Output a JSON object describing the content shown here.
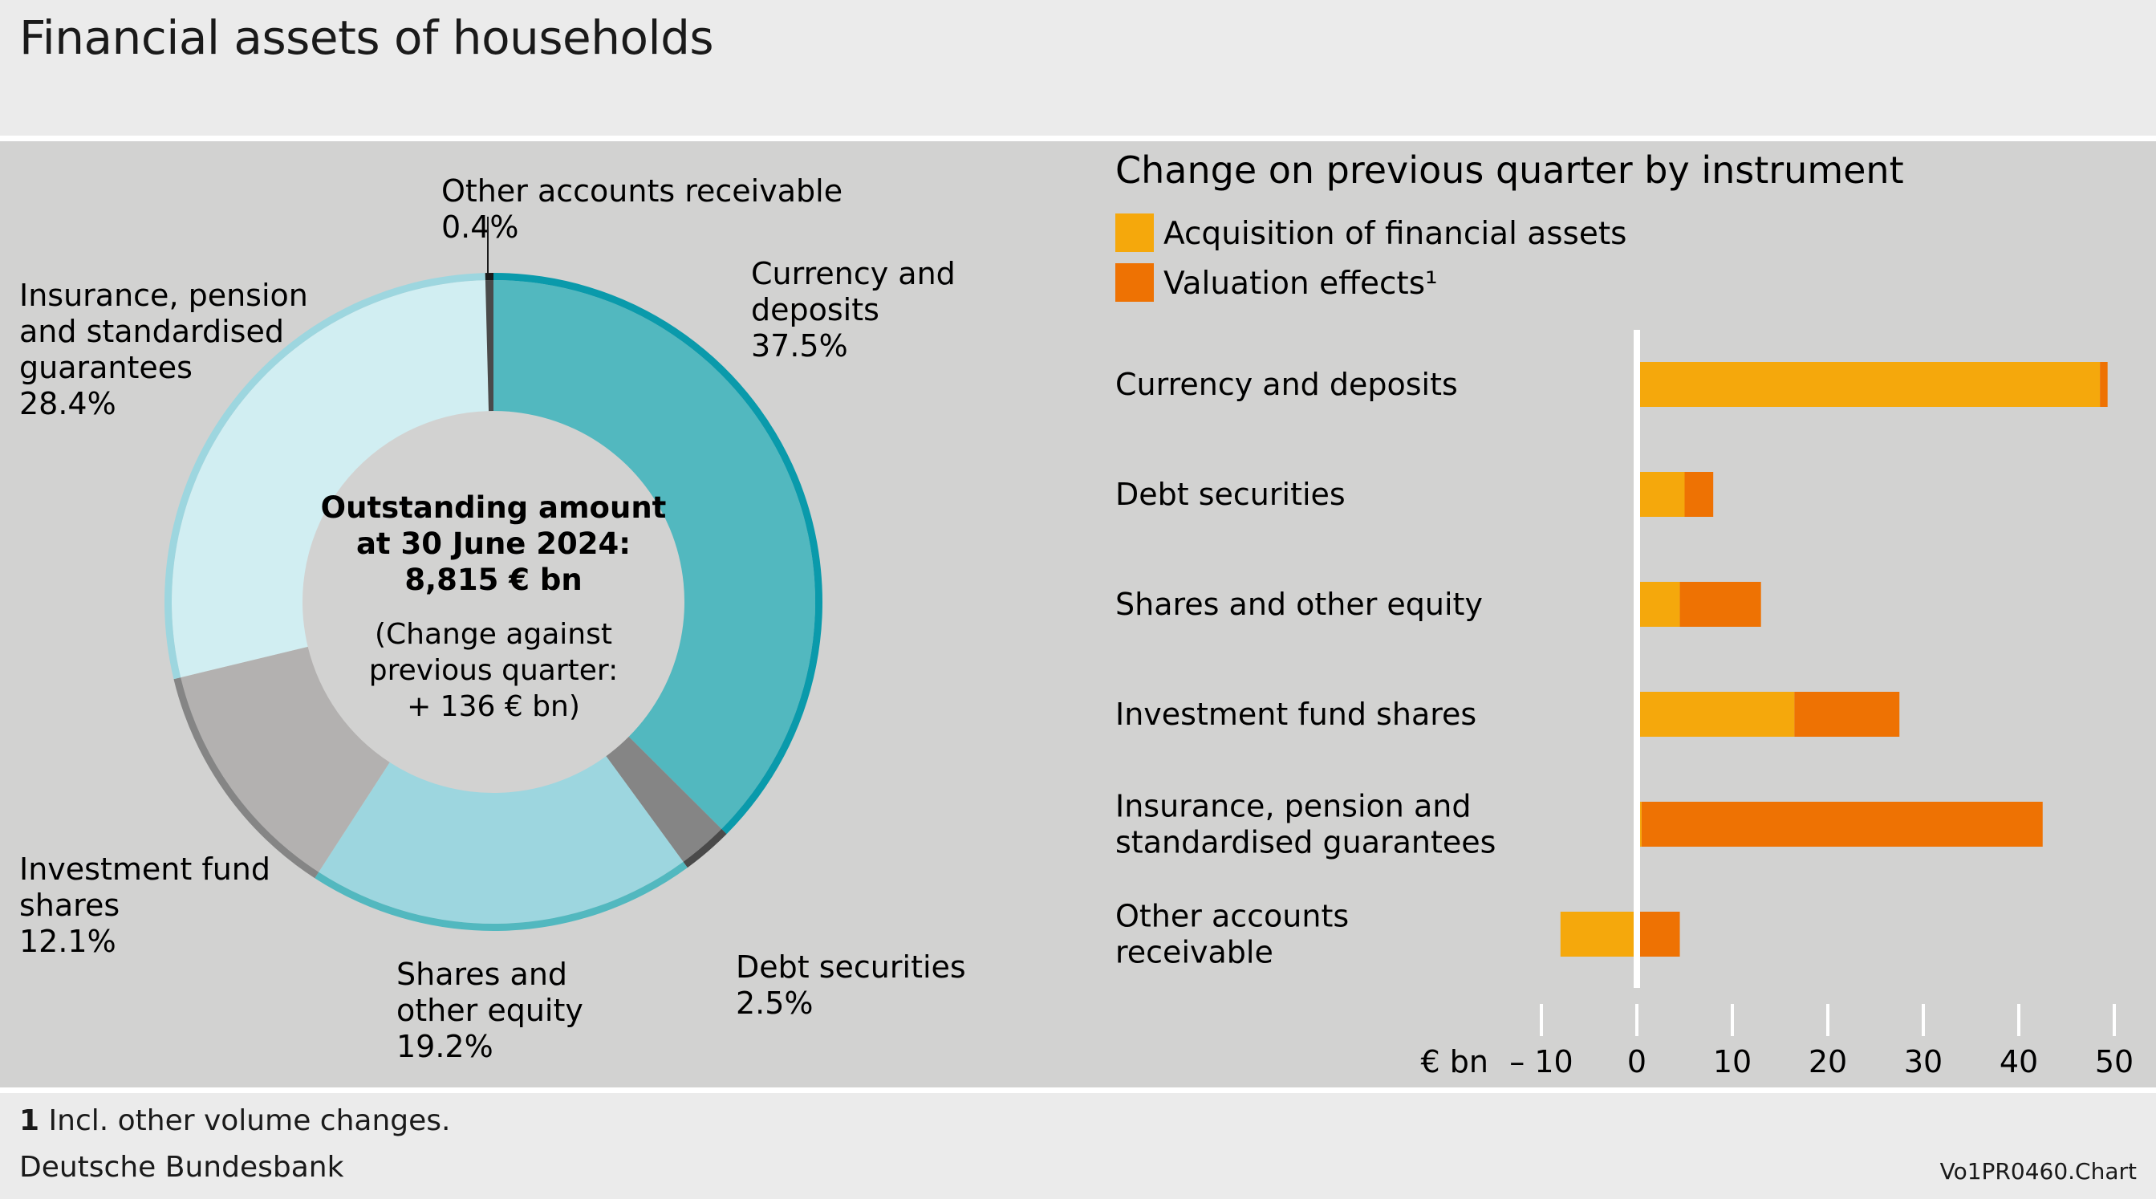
{
  "title": "Financial assets of households",
  "colors": {
    "panel_bg": "#d2d2d1",
    "acquisition": "#f5a80c",
    "valuation": "#ee7203",
    "donut_currency": "#52b8bf",
    "donut_currency_rim": "#0a9aab",
    "donut_debt": "#858585",
    "donut_debt_rim": "#4a4a4a",
    "donut_shares": "#9dd6df",
    "donut_shares_rim": "#52b8bf",
    "donut_fund": "#b3b1b0",
    "donut_fund_rim": "#858585",
    "donut_insurance": "#d1eef2",
    "donut_insurance_rim": "#9dd6df",
    "donut_other": "#4a4a4a",
    "donut_other_rim": "#1a1a1a"
  },
  "chart_data": [
    {
      "type": "pie",
      "subtype": "donut",
      "center_text": {
        "line1": "Outstanding amount",
        "line2": "at 30 June 2024:",
        "line3": "8,815 € bn",
        "line4": "(Change against",
        "line5": "previous quarter:",
        "line6": "+ 136 € bn)"
      },
      "slices": [
        {
          "label_lines": [
            "Currency and",
            "deposits"
          ],
          "pct_label": "37.5%",
          "value": 37.5,
          "color": "#52b8bf",
          "rim": "#0a9aab"
        },
        {
          "label_lines": [
            "Debt securities"
          ],
          "pct_label": "2.5%",
          "value": 2.5,
          "color": "#858585",
          "rim": "#4a4a4a"
        },
        {
          "label_lines": [
            "Shares and",
            "other equity"
          ],
          "pct_label": "19.2%",
          "value": 19.2,
          "color": "#9dd6df",
          "rim": "#52b8bf"
        },
        {
          "label_lines": [
            "Investment fund",
            "shares"
          ],
          "pct_label": "12.1%",
          "value": 12.1,
          "color": "#b3b1b0",
          "rim": "#858585"
        },
        {
          "label_lines": [
            "Insurance, pension",
            "and standardised",
            "guarantees"
          ],
          "pct_label": "28.4%",
          "value": 28.4,
          "color": "#d1eef2",
          "rim": "#9dd6df"
        },
        {
          "label_lines": [
            "Other accounts receivable"
          ],
          "pct_label": "0.4%",
          "value": 0.4,
          "color": "#4a4a4a",
          "rim": "#1a1a1a"
        }
      ]
    },
    {
      "type": "bar",
      "orientation": "horizontal",
      "stacked": true,
      "title": "Change on previous quarter by instrument",
      "unit_label": "€ bn",
      "xlim": [
        -10,
        50
      ],
      "ticks": [
        -10,
        0,
        10,
        20,
        30,
        40,
        50
      ],
      "tick_labels": [
        "– 10",
        "0",
        "10",
        "20",
        "30",
        "40",
        "50"
      ],
      "categories": [
        [
          "Currency and deposits"
        ],
        [
          "Debt securities"
        ],
        [
          "Shares and other equity"
        ],
        [
          "Investment fund shares"
        ],
        [
          "Insurance, pension and",
          "standardised guarantees"
        ],
        [
          "Other accounts",
          "receivable"
        ]
      ],
      "series": [
        {
          "name": "Acquisition of financial assets",
          "color": "#f5a80c",
          "values": [
            48.5,
            5,
            4.5,
            16.5,
            0.5,
            -8
          ]
        },
        {
          "name": "Valuation effects¹",
          "color": "#ee7203",
          "values": [
            0.8,
            3,
            8.5,
            11,
            42,
            4.5
          ]
        }
      ]
    }
  ],
  "footnote": {
    "number": "1",
    "text": " Incl. other volume changes."
  },
  "source": "Deutsche Bundesbank",
  "chart_id": "Vo1PR0460.Chart"
}
